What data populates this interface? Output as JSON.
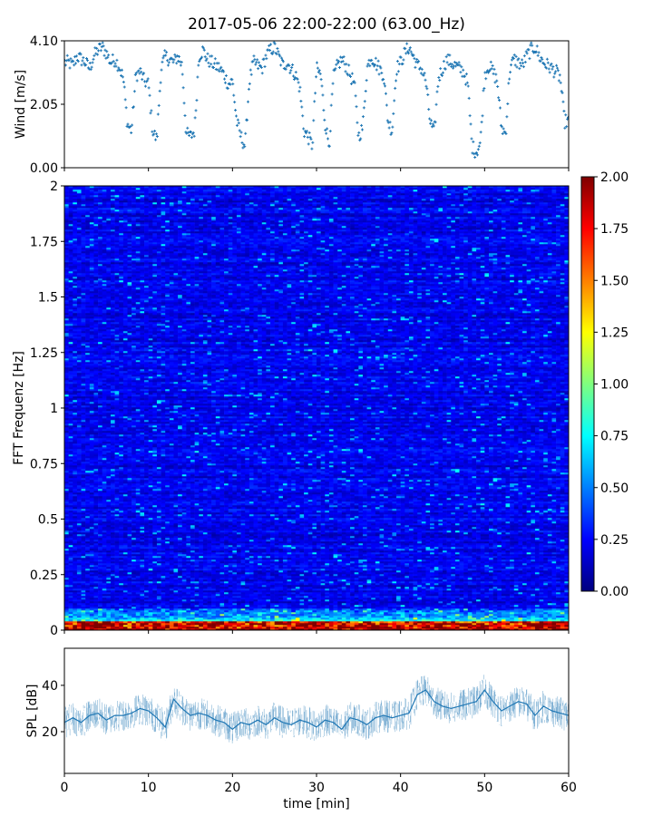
{
  "chart_data": [
    {
      "type": "scatter",
      "title": "2017-05-06 22:00-22:00 (63.00_Hz)",
      "ylabel": "Wind [m/s]",
      "xlim": [
        0,
        60
      ],
      "ylim": [
        0,
        4.1
      ],
      "yticks": [
        "0.00",
        "2.05",
        "4.10"
      ],
      "series": [
        {
          "color": "#1f77b4",
          "marker": "+",
          "x": [
            0.5,
            1,
            1.5,
            2,
            2.5,
            3,
            3.5,
            4,
            4.5,
            5,
            5.5,
            6,
            6.5,
            7,
            7.5,
            8,
            8.5,
            9,
            9.5,
            10,
            10.5,
            11,
            11.5,
            12,
            12.5,
            13,
            13.5,
            14,
            14.5,
            15,
            15.5,
            16,
            16.5,
            17,
            17.5,
            18,
            18.5,
            19,
            19.5,
            20,
            20.5,
            21,
            21.5,
            22,
            22.5,
            23,
            23.5,
            24,
            24.5,
            25,
            25.5,
            26,
            26.5,
            27,
            27.5,
            28,
            28.5,
            29,
            29.5,
            30,
            30.5,
            31,
            31.5,
            32,
            32.5,
            33,
            33.5,
            34,
            34.5,
            35,
            35.5,
            36,
            36.5,
            37,
            37.5,
            38,
            38.5,
            39,
            39.5,
            40,
            40.5,
            41,
            41.5,
            42,
            42.5,
            43,
            43.5,
            44,
            44.5,
            45,
            45.5,
            46,
            46.5,
            47,
            47.5,
            48,
            48.5,
            49,
            49.5,
            50,
            50.5,
            51,
            51.5,
            52,
            52.5,
            53,
            53.5,
            54,
            54.5,
            55,
            55.5,
            56,
            56.5,
            57,
            57.5,
            58,
            58.5,
            59,
            59.5
          ],
          "y": [
            3.4,
            3.3,
            3.6,
            3.5,
            3.4,
            3.2,
            3.6,
            3.8,
            3.9,
            3.7,
            3.4,
            3.5,
            3.3,
            2.9,
            1.4,
            1.2,
            3.0,
            3.1,
            2.8,
            2.7,
            1.2,
            0.9,
            3.2,
            3.6,
            3.5,
            3.4,
            3.6,
            3.3,
            1.1,
            1.0,
            1.2,
            3.6,
            3.8,
            3.5,
            3.4,
            3.3,
            3.2,
            3.0,
            2.7,
            2.8,
            1.5,
            1.0,
            0.7,
            2.8,
            3.4,
            3.3,
            3.2,
            3.6,
            3.8,
            3.9,
            3.6,
            3.3,
            3.4,
            3.2,
            3.0,
            2.6,
            1.2,
            1.0,
            0.7,
            3.2,
            3.0,
            1.5,
            0.7,
            2.9,
            3.3,
            3.5,
            3.3,
            3.0,
            2.7,
            1.0,
            1.3,
            3.2,
            3.6,
            3.4,
            3.2,
            3.0,
            1.5,
            1.2,
            3.2,
            3.4,
            3.7,
            3.9,
            3.6,
            3.3,
            3.2,
            2.8,
            1.5,
            1.1,
            2.9,
            3.2,
            3.5,
            3.4,
            3.3,
            3.2,
            3.1,
            2.7,
            0.7,
            0.5,
            0.8,
            3.0,
            3.3,
            3.1,
            2.8,
            1.3,
            1.1,
            3.2,
            3.5,
            3.4,
            3.3,
            3.6,
            3.8,
            3.9,
            3.6,
            3.4,
            3.3,
            3.2,
            3.1,
            2.9,
            1.5
          ]
        }
      ]
    },
    {
      "type": "heatmap",
      "ylabel": "FFT Frequenz [Hz]",
      "xlim": [
        0,
        60
      ],
      "ylim": [
        0,
        2
      ],
      "yticks": [
        "0",
        "0.25",
        "0.5",
        "0.75",
        "1",
        "1.25",
        "1.5",
        "1.75",
        "2"
      ],
      "colormap": "jet",
      "colorbar": {
        "range": [
          0,
          2
        ],
        "ticks": [
          "0.00",
          "0.25",
          "0.50",
          "0.75",
          "1.00",
          "1.25",
          "1.50",
          "1.75",
          "2.00"
        ]
      },
      "colormap_stops": [
        "#00007f",
        "#0000ff",
        "#007fff",
        "#00ffff",
        "#7fff7f",
        "#ffff00",
        "#ff7f00",
        "#ff0000",
        "#7f0000"
      ]
    },
    {
      "type": "line",
      "xlabel": "time [min]",
      "ylabel": "SPL [dB]",
      "xlim": [
        0,
        60
      ],
      "ylim": [
        2,
        56
      ],
      "xticks": [
        "0",
        "10",
        "20",
        "30",
        "40",
        "50",
        "60"
      ],
      "yticks": [
        "20",
        "40"
      ],
      "series": [
        {
          "color": "#1f77b4",
          "x": [
            0,
            1,
            2,
            3,
            4,
            5,
            6,
            7,
            8,
            9,
            10,
            11,
            12,
            13,
            14,
            15,
            16,
            17,
            18,
            19,
            20,
            21,
            22,
            23,
            24,
            25,
            26,
            27,
            28,
            29,
            30,
            31,
            32,
            33,
            34,
            35,
            36,
            37,
            38,
            39,
            40,
            41,
            42,
            43,
            44,
            45,
            46,
            47,
            48,
            49,
            50,
            51,
            52,
            53,
            54,
            55,
            56,
            57,
            58,
            59,
            60
          ],
          "y": [
            24,
            26,
            24,
            27,
            28,
            25,
            27,
            27,
            28,
            30,
            29,
            26,
            22,
            34,
            30,
            27,
            28,
            27,
            25,
            24,
            21,
            24,
            23,
            25,
            23,
            26,
            24,
            23,
            25,
            24,
            22,
            25,
            24,
            21,
            26,
            25,
            23,
            26,
            27,
            26,
            27,
            28,
            36,
            38,
            33,
            31,
            30,
            31,
            32,
            33,
            38,
            33,
            29,
            31,
            33,
            32,
            27,
            31,
            29,
            28,
            27
          ]
        }
      ]
    }
  ]
}
